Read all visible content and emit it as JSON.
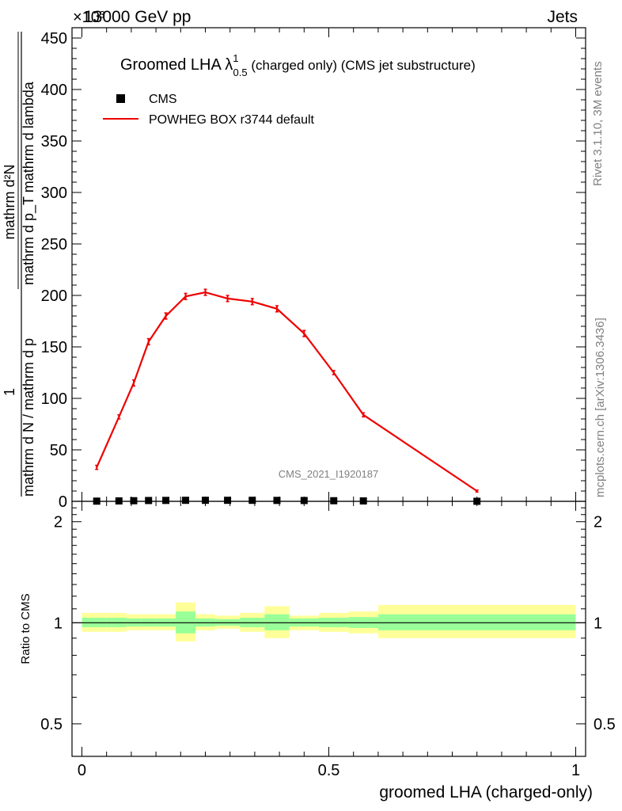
{
  "header": {
    "left": "13000 GeV pp",
    "right": "Jets",
    "exponent": "×10³"
  },
  "side": {
    "rivet": "Rivet 3.1.10,  3M events",
    "mcplots": "mcplots.cern.ch [arXiv:1306.3436]"
  },
  "chart_data": [
    {
      "type": "line",
      "title_main": "Groomed LHA λ",
      "title_sup": "1",
      "title_sub": "0.5",
      "title_rest": " (charged only) (CMS jet substructure)",
      "ylabel_top": "1",
      "ylabel_bottom": "mathrm d N / mathrm d p_T mathrm d p_T mathrm d lambda",
      "ylabel_frac_num": "mathrm d²N",
      "ylabel_frac_den": "mathrm d p_T mathrm d lambda",
      "ylabel_plain": "mathrm d N / mathrm d p",
      "ylabel_mid": "mathrm d p",
      "ylabel_sub": "T",
      "ylabel_end": "mathrm d lambda",
      "ylim": [
        0,
        460
      ],
      "yticks": [
        0,
        50,
        100,
        150,
        200,
        250,
        300,
        350,
        400,
        450
      ],
      "xlim": [
        -0.02,
        1.02
      ],
      "watermark": "CMS_2021_I1920187",
      "legend": [
        {
          "label": "CMS",
          "marker": "square",
          "color": "#000000"
        },
        {
          "label": "POWHEG BOX r3744 default",
          "marker": "line",
          "color": "#ee0000"
        }
      ],
      "series": [
        {
          "name": "POWHEG BOX r3744 default",
          "color": "#ee0000",
          "x": [
            0.03,
            0.075,
            0.105,
            0.135,
            0.17,
            0.21,
            0.25,
            0.295,
            0.345,
            0.395,
            0.45,
            0.51,
            0.57,
            0.8
          ],
          "y": [
            33,
            82,
            115,
            155,
            180,
            199,
            203,
            197,
            194,
            187,
            163,
            125,
            84,
            10
          ],
          "err": [
            2,
            2,
            3,
            3,
            3,
            3,
            3,
            3,
            3,
            3,
            3,
            2,
            2,
            1
          ]
        },
        {
          "name": "CMS",
          "color": "#000000",
          "x": [
            0.03,
            0.075,
            0.105,
            0.135,
            0.17,
            0.21,
            0.25,
            0.295,
            0.345,
            0.395,
            0.45,
            0.51,
            0.57,
            0.8
          ],
          "y": [
            0.2,
            0.4,
            0.6,
            0.8,
            0.9,
            1.0,
            1.0,
            1.0,
            1.0,
            0.9,
            0.8,
            0.6,
            0.4,
            0.05
          ]
        }
      ]
    },
    {
      "type": "area",
      "ylabel": "Ratio to CMS",
      "xlabel": "groomed LHA (charged-only)",
      "ylim": [
        0.4,
        2.3
      ],
      "yscale": "log",
      "yticks": [
        0.5,
        1,
        2
      ],
      "ytick_labels": [
        "0.5",
        "1",
        "2"
      ],
      "xticks": [
        0,
        0.5,
        1
      ],
      "xtick_labels": [
        "0",
        "0.5",
        "1"
      ],
      "bands": {
        "bins": [
          0,
          0.05,
          0.09,
          0.12,
          0.15,
          0.19,
          0.23,
          0.27,
          0.32,
          0.37,
          0.42,
          0.48,
          0.54,
          0.6,
          1.0
        ],
        "yellow_lo": [
          0.94,
          0.94,
          0.95,
          0.95,
          0.95,
          0.88,
          0.95,
          0.96,
          0.94,
          0.9,
          0.95,
          0.94,
          0.93,
          0.9
        ],
        "yellow_hi": [
          1.07,
          1.07,
          1.06,
          1.06,
          1.06,
          1.15,
          1.06,
          1.05,
          1.07,
          1.12,
          1.05,
          1.07,
          1.08,
          1.13
        ],
        "green_lo": [
          0.97,
          0.97,
          0.975,
          0.975,
          0.975,
          0.93,
          0.975,
          0.98,
          0.97,
          0.95,
          0.975,
          0.97,
          0.965,
          0.95
        ],
        "green_hi": [
          1.035,
          1.035,
          1.03,
          1.03,
          1.03,
          1.08,
          1.03,
          1.025,
          1.035,
          1.06,
          1.03,
          1.035,
          1.04,
          1.06
        ]
      }
    }
  ]
}
